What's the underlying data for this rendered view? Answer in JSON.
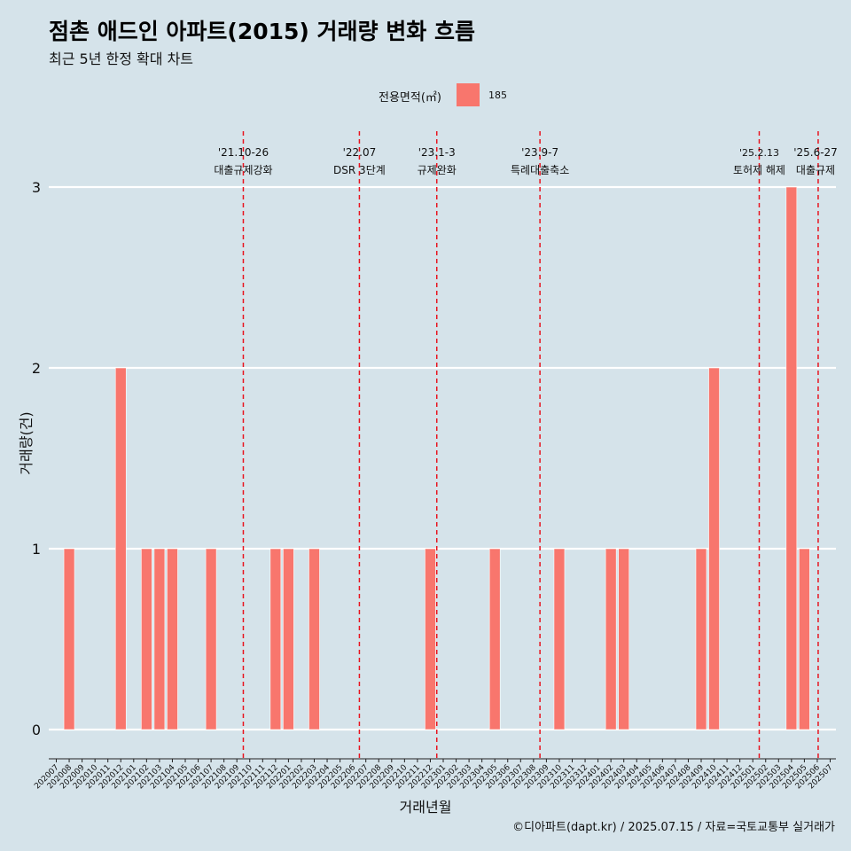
{
  "title": "점촌 애드인 아파트(2015) 거래량 변화 흐름",
  "subtitle": "최근 5년 한정 확대 차트",
  "legend": {
    "title": "전용면적(㎡)",
    "label": "185",
    "color": "#f8766d"
  },
  "caption": "©디아파트(dapt.kr) / 2025.07.15 / 자료=국토교통부 실거래가",
  "chart_data": {
    "type": "bar",
    "xlabel": "거래년월",
    "ylabel": "거래량(건)",
    "ylim": [
      0,
      3
    ],
    "yticks": [
      "0",
      "1",
      "2",
      "3"
    ],
    "grid": "horizontal",
    "bar_color": "#f8766d",
    "categories": [
      "202007",
      "202008",
      "202009",
      "202010",
      "202011",
      "202012",
      "202101",
      "202102",
      "202103",
      "202104",
      "202105",
      "202106",
      "202107",
      "202108",
      "202109",
      "202110",
      "202111",
      "202112",
      "202201",
      "202202",
      "202203",
      "202204",
      "202205",
      "202206",
      "202207",
      "202208",
      "202209",
      "202210",
      "202211",
      "202212",
      "202301",
      "202302",
      "202303",
      "202304",
      "202305",
      "202306",
      "202307",
      "202308",
      "202309",
      "202310",
      "202311",
      "202312",
      "202401",
      "202402",
      "202403",
      "202404",
      "202405",
      "202406",
      "202407",
      "202408",
      "202409",
      "202410",
      "202411",
      "202412",
      "202501",
      "202502",
      "202503",
      "202504",
      "202505",
      "202506",
      "202507"
    ],
    "series": [
      {
        "name": "185",
        "values": [
          0,
          1,
          0,
          0,
          0,
          2,
          0,
          1,
          1,
          1,
          0,
          0,
          1,
          0,
          0,
          0,
          0,
          1,
          1,
          0,
          1,
          0,
          0,
          0,
          0,
          0,
          0,
          0,
          0,
          1,
          0,
          0,
          0,
          0,
          1,
          0,
          0,
          0,
          0,
          1,
          0,
          0,
          0,
          1,
          1,
          0,
          0,
          0,
          0,
          0,
          1,
          2,
          0,
          0,
          0,
          0,
          0,
          3,
          1,
          0,
          0
        ]
      }
    ],
    "annotations": [
      {
        "x": "202110",
        "date": "'21.10-26",
        "label": "대출규제강화"
      },
      {
        "x": "202207",
        "date": "'22.07",
        "label": "DSR 3단계"
      },
      {
        "x": "202301",
        "date": "'23.1-3",
        "label": "규제완화"
      },
      {
        "x": "202309",
        "date": "'23.9-7",
        "label": "특례대출축소"
      },
      {
        "x": "202502",
        "date": "'25.2.13",
        "label": "토허제 해제"
      },
      {
        "x": "202506",
        "date": "'25.6-27",
        "label": "대출규제"
      }
    ]
  }
}
